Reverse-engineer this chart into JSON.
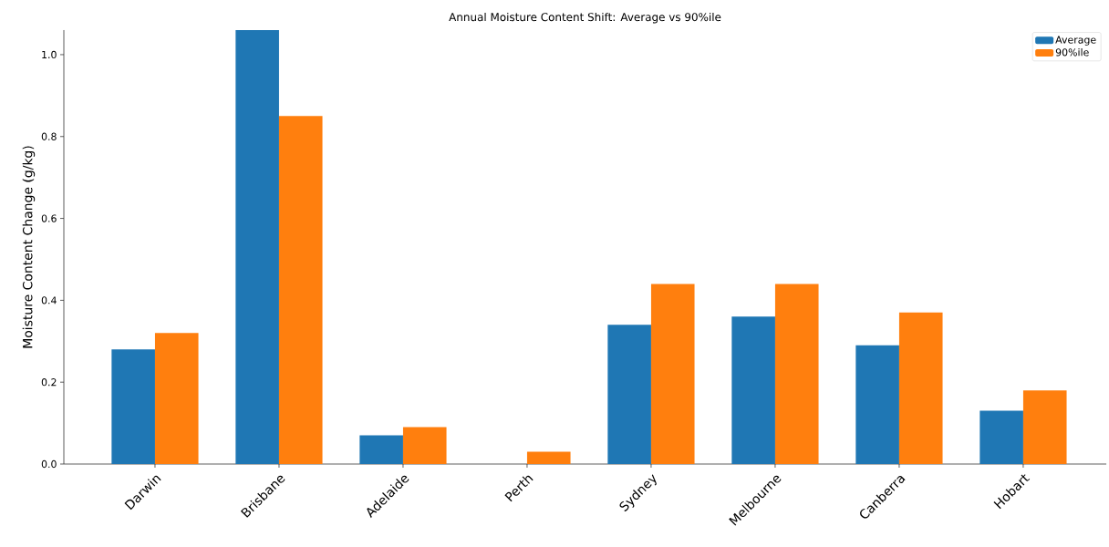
{
  "chart_data": {
    "type": "bar",
    "title": "Annual Moisture Content Shift: Average vs 90%ile",
    "ylabel": "Moisture Content Change (g/kg)",
    "categories": [
      "Darwin",
      "Brisbane",
      "Adelaide",
      "Perth",
      "Sydney",
      "Melbourne",
      "Canberra",
      "Hobart"
    ],
    "series": [
      {
        "name": "Average",
        "color": "#1f77b4",
        "values": [
          0.28,
          1.06,
          0.07,
          0.0,
          0.34,
          0.36,
          0.29,
          0.13
        ]
      },
      {
        "name": "90%ile",
        "color": "#ff7f0e",
        "values": [
          0.32,
          0.85,
          0.09,
          0.03,
          0.44,
          0.44,
          0.37,
          0.18
        ]
      }
    ],
    "ylim": [
      0,
      1.06
    ],
    "yticks": [
      {
        "value": 0,
        "label": "0.0"
      },
      {
        "value": 0.2,
        "label": "0.2"
      },
      {
        "value": 0.4,
        "label": "0.4"
      },
      {
        "value": 0.6,
        "label": "0.6"
      },
      {
        "value": 0.8,
        "label": "0.8"
      },
      {
        "value": 1.0,
        "label": "1.0"
      }
    ],
    "grid": false,
    "legend": "top right"
  }
}
